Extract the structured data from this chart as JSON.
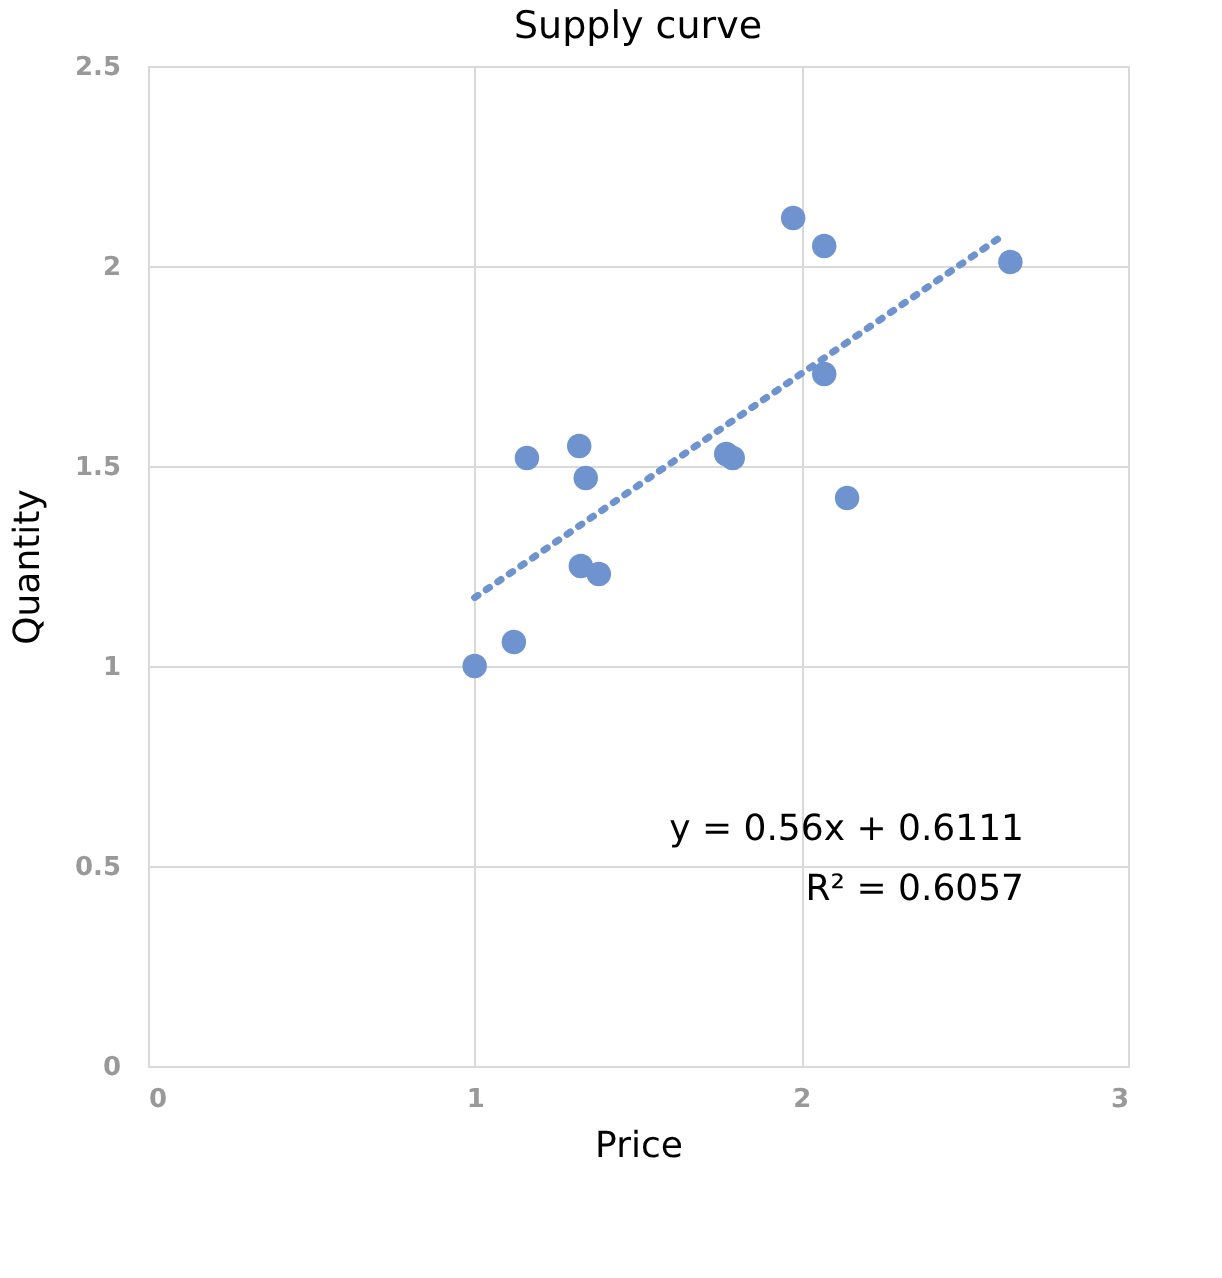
{
  "chart_data": {
    "type": "scatter",
    "title": "Supply curve",
    "xlabel": "Price",
    "ylabel": "Quantity",
    "xlim": [
      0,
      3
    ],
    "xticks": [
      0,
      1,
      2,
      3
    ],
    "ylim": [
      0,
      2.5
    ],
    "yticks": [
      0,
      0.5,
      1,
      1.5,
      2,
      2.5
    ],
    "grid": true,
    "series": [
      {
        "color": "#6f93cf",
        "marker": "circle",
        "x": [
          1.0,
          1.12,
          1.16,
          1.32,
          1.34,
          1.325,
          1.38,
          1.77,
          1.79,
          1.975,
          2.07,
          2.07,
          2.14,
          2.64
        ],
        "values": [
          1.0,
          1.06,
          1.52,
          1.55,
          1.47,
          1.25,
          1.23,
          1.53,
          1.52,
          2.12,
          2.05,
          1.73,
          1.42,
          2.01
        ]
      },
      {
        "type": "line",
        "color": "#6f93cf",
        "marker": "none",
        "line_style": "dotted",
        "x": [
          1.0,
          2.62
        ],
        "values": [
          1.171,
          2.078
        ]
      }
    ],
    "annotations": [
      "y = 0.56x + 0.6111",
      "R² = 0.6057"
    ]
  }
}
